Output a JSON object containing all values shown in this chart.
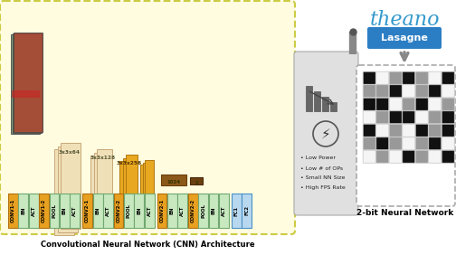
{
  "cnn_label": "Convolutional Neural Network (CNN) Architecture",
  "bnn_label": "2-bit Neural Network",
  "theano_text": "theano",
  "lasagne_text": "Lasagne",
  "layer_labels_group1": [
    "CONV1-1",
    "BN",
    "ACT",
    "CONV1-2",
    "POOL",
    "BN",
    "ACT"
  ],
  "layer_labels_group2": [
    "CONV2-1",
    "BN",
    "ACT",
    "CONV2-2",
    "POOL",
    "BN",
    "ACT"
  ],
  "layer_labels_group3": [
    "CONV2-1",
    "BN",
    "ACT",
    "CONV2-2",
    "POOL",
    "BN",
    "ACT"
  ],
  "layer_labels_fc": [
    "FC1",
    "FC2"
  ],
  "bullet_points": [
    "Low Power",
    "Low # of OPs",
    "Small NN Size",
    "High FPS Rate"
  ],
  "bg_yellow": "#FFFCE0",
  "orange_color": "#E8A020",
  "green_color": "#C8E8C0",
  "blue_lasagne": "#2B7EC4",
  "grid_colors": [
    [
      "black",
      "white",
      "gray",
      "black",
      "gray",
      "white",
      "black"
    ],
    [
      "gray",
      "gray",
      "black",
      "white",
      "gray",
      "black",
      "white"
    ],
    [
      "black",
      "black",
      "white",
      "gray",
      "black",
      "white",
      "gray"
    ],
    [
      "white",
      "gray",
      "black",
      "black",
      "white",
      "gray",
      "black"
    ],
    [
      "black",
      "white",
      "gray",
      "white",
      "black",
      "gray",
      "black"
    ],
    [
      "gray",
      "black",
      "gray",
      "white",
      "gray",
      "black",
      "white"
    ],
    [
      "white",
      "gray",
      "white",
      "black",
      "gray",
      "white",
      "black"
    ]
  ],
  "color_map": {
    "black": "#111111",
    "white": "#F5F5F5",
    "gray": "#999999"
  }
}
